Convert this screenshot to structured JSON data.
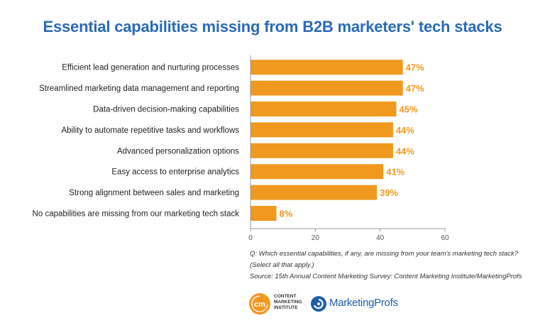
{
  "title": "Essential capabilities missing from B2B marketers' tech stacks",
  "chart_data": {
    "type": "bar",
    "orientation": "horizontal",
    "categories": [
      "Efficient lead generation and nurturing processes",
      "Streamlined marketing data management and reporting",
      "Data-driven decision-making capabilities",
      "Ability to automate repetitive tasks and workflows",
      "Advanced personalization options",
      "Easy access to enterprise analytics",
      "Strong alignment between sales and marketing",
      "No capabilities are missing from our marketing tech stack"
    ],
    "values": [
      47,
      47,
      45,
      44,
      44,
      41,
      39,
      8
    ],
    "value_labels": [
      "47%",
      "47%",
      "45%",
      "44%",
      "44%",
      "41%",
      "39%",
      "8%"
    ],
    "xlim": [
      0,
      60
    ],
    "xticks": [
      "0",
      "20",
      "40",
      "60"
    ],
    "grid": false,
    "bar_color": "#f0991f",
    "label_color": "#f0991f"
  },
  "notes": {
    "question_line1": "Q:  Which essential capabilities, if any, are missing from your team's marketing tech stack?",
    "question_line2": "(Select all that apply.)",
    "source": "Source: 15th Annual Content Marketing Survey: Content Marketing Institute/MarketingProfs"
  },
  "logos": {
    "cmi_mark": "cm",
    "cmi_line1": "CONTENT",
    "cmi_line2": "MARKETING",
    "cmi_line3": "INSTITUTE",
    "mp_name": "MarketingProfs",
    "cmi_color": "#f0991f",
    "mp_color": "#1e5fa8"
  }
}
